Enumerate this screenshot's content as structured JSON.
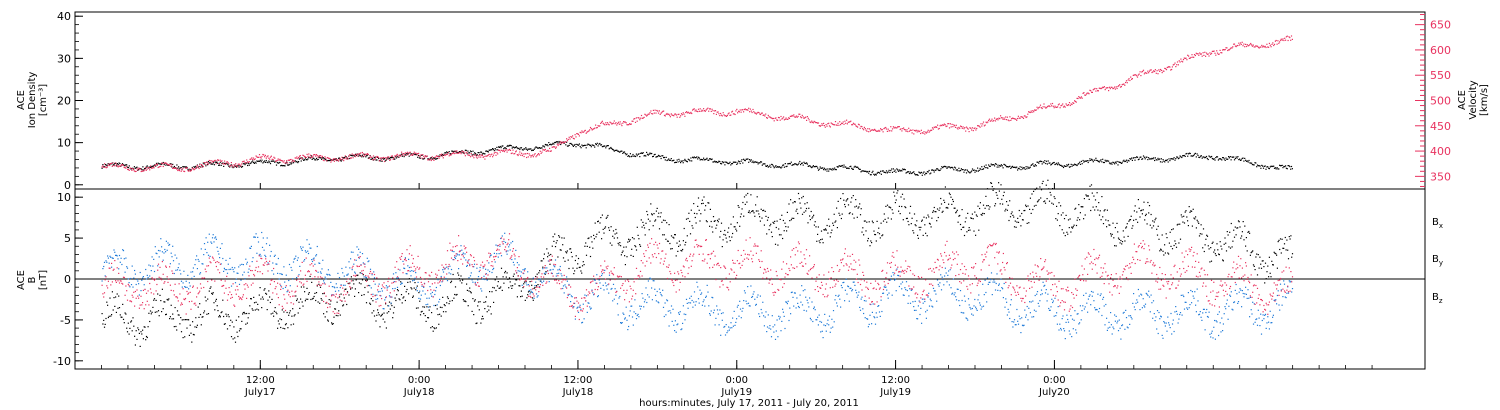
{
  "colors": {
    "black": "#000000",
    "magenta": "#e8325f",
    "blue": "#1e7ad8"
  },
  "chart_data": [
    {
      "type": "scatter",
      "panel": "top",
      "ylabel_left": [
        "ACE",
        "Ion Density",
        "[cm⁻³]"
      ],
      "ylabel_right": [
        "ACE",
        "Velocity",
        "[km/s]"
      ],
      "ylim_left": [
        -1,
        41
      ],
      "ylim_right": [
        325,
        675
      ],
      "yticks_left": [
        "0",
        "10",
        "20",
        "30",
        "40"
      ],
      "yticks_right": [
        "350",
        "400",
        "450",
        "500",
        "550",
        "600",
        "650"
      ],
      "series": [
        {
          "axis": "left",
          "color": "black",
          "x": [
            0,
            6,
            12,
            18,
            24,
            30,
            36,
            42,
            48,
            54,
            60,
            66,
            72,
            78,
            84,
            90
          ],
          "y": [
            4.5,
            4.5,
            5.2,
            6.5,
            6.8,
            8.5,
            10,
            6.5,
            5.5,
            4.5,
            3,
            4,
            5,
            6,
            7,
            3.5
          ]
        },
        {
          "axis": "right",
          "color": "magenta",
          "x": [
            0,
            6,
            12,
            18,
            24,
            30,
            34,
            36,
            42,
            48,
            54,
            60,
            66,
            72,
            78,
            84,
            90
          ],
          "y": [
            370,
            368,
            385,
            388,
            392,
            395,
            400,
            440,
            475,
            480,
            460,
            440,
            450,
            490,
            545,
            600,
            620
          ]
        }
      ]
    },
    {
      "type": "scatter",
      "panel": "bottom",
      "ylabel_left": [
        "ACE",
        "B",
        "[nT]"
      ],
      "ylim": [
        -11,
        11
      ],
      "yticks": [
        "-10",
        "-5",
        "0",
        "5",
        "10"
      ],
      "legend": [
        {
          "label": "B",
          "sub": "x",
          "color": "black"
        },
        {
          "label": "B",
          "sub": "y",
          "color": "blue"
        },
        {
          "label": "B",
          "sub": "z",
          "color": "magenta"
        }
      ],
      "series": [
        {
          "name": "Bx",
          "color": "black",
          "x": [
            0,
            6,
            12,
            18,
            24,
            30,
            36,
            42,
            48,
            54,
            60,
            66,
            72,
            78,
            84,
            90
          ],
          "y": [
            -5,
            -4.5,
            -4,
            -2,
            -3,
            -2,
            4,
            6,
            7.5,
            7.5,
            7.5,
            8.5,
            9,
            7,
            5,
            2
          ]
        },
        {
          "name": "By",
          "color": "blue",
          "x": [
            0,
            6,
            12,
            18,
            24,
            30,
            36,
            42,
            48,
            54,
            60,
            66,
            72,
            78,
            84,
            90
          ],
          "y": [
            1,
            2,
            2.5,
            1,
            -1,
            3,
            -2,
            -3,
            -4,
            -4,
            -2,
            -2,
            -4,
            -4,
            -4,
            -3
          ]
        },
        {
          "name": "Bz",
          "color": "magenta",
          "x": [
            0,
            6,
            12,
            18,
            24,
            30,
            36,
            42,
            48,
            54,
            60,
            66,
            72,
            78,
            84,
            90
          ],
          "y": [
            -1,
            -1,
            0,
            -1,
            1,
            3,
            -2,
            2,
            2,
            1,
            0,
            2,
            -1,
            2,
            0,
            -2
          ]
        }
      ]
    }
  ],
  "xaxis": {
    "ticks": [
      {
        "x": 12,
        "time": "12:00",
        "date": "July17"
      },
      {
        "x": 24,
        "time": "0:00",
        "date": "July18"
      },
      {
        "x": 36,
        "time": "12:00",
        "date": "July18"
      },
      {
        "x": 48,
        "time": "0:00",
        "date": "July19"
      },
      {
        "x": 60,
        "time": "12:00",
        "date": "July19"
      },
      {
        "x": 72,
        "time": "0:00",
        "date": "July20"
      }
    ],
    "label": "hours:minutes, July 17, 2011 - July 20, 2011"
  }
}
